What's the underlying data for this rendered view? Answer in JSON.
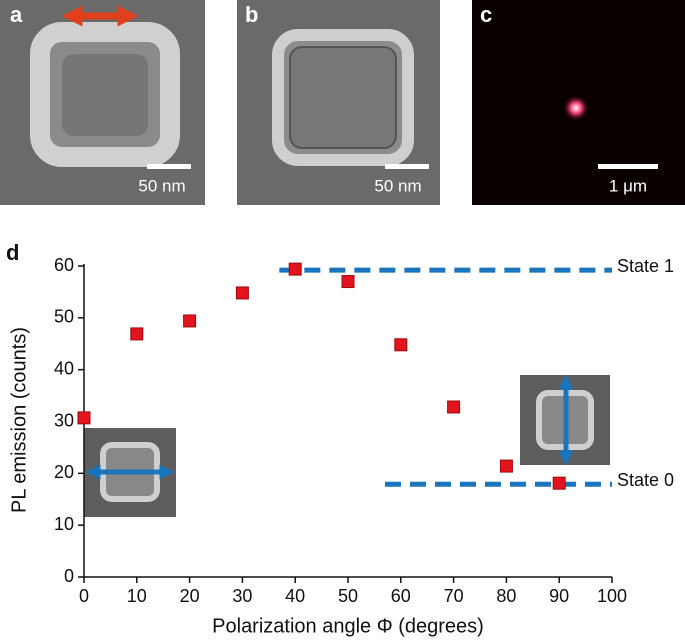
{
  "panels": [
    {
      "label": "a",
      "scale_bar": "50 nm"
    },
    {
      "label": "b",
      "scale_bar": "50 nm"
    },
    {
      "label": "c",
      "scale_bar": "1 μm"
    }
  ],
  "chart_data": {
    "type": "scatter",
    "panel_label": "d",
    "x_label": "Polarization angle Φ (degrees)",
    "y_label": "PL emission (counts)",
    "x": [
      0,
      10,
      20,
      30,
      40,
      50,
      60,
      70,
      80,
      90
    ],
    "values": [
      30.7,
      46.9,
      49.4,
      54.8,
      59.4,
      57,
      44.8,
      32.8,
      21.4,
      18.1
    ],
    "color": "#e3141b",
    "xlim": [
      0,
      100
    ],
    "xticks": [
      0,
      10,
      20,
      30,
      40,
      50,
      60,
      70,
      80,
      90,
      100
    ],
    "ylim": [
      0,
      60
    ],
    "yticks": [
      0,
      10,
      20,
      30,
      40,
      50,
      60
    ],
    "reference_lines": [
      {
        "label": "State 1",
        "y": 59.2,
        "x": [
          37,
          100
        ],
        "color": "#1a75bc"
      },
      {
        "label": "State 0",
        "y": 17.9,
        "x": [
          57,
          100
        ],
        "color": "#1a75bc"
      }
    ]
  }
}
